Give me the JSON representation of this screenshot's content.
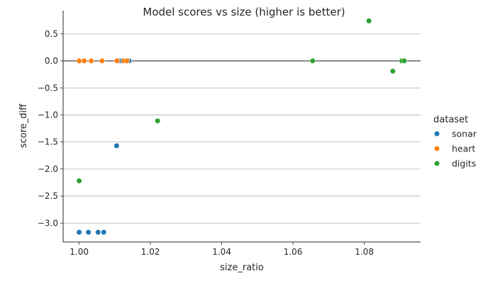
{
  "chart_data": {
    "type": "scatter",
    "title": "Model scores vs size (higher is better)",
    "xlabel": "size_ratio",
    "ylabel": "score_diff",
    "xlim": [
      0.9955,
      1.0958
    ],
    "ylim": [
      -3.35,
      0.93
    ],
    "xticks": [
      1.0,
      1.02,
      1.04,
      1.06,
      1.08
    ],
    "xtick_labels": [
      "1.00",
      "1.02",
      "1.04",
      "1.06",
      "1.08"
    ],
    "yticks": [
      -3.0,
      -2.5,
      -2.0,
      -1.5,
      -1.0,
      -0.5,
      0.0,
      0.5
    ],
    "ytick_labels": [
      "−3.0",
      "−2.5",
      "−2.0",
      "−1.5",
      "−1.0",
      "−0.5",
      "0.0",
      "0.5"
    ],
    "grid": "horizontal",
    "reference_line_y": 0,
    "legend": {
      "title": "dataset",
      "placement": "right",
      "entries": [
        "sonar",
        "heart",
        "digits"
      ]
    },
    "series": [
      {
        "name": "sonar",
        "color": "#1f77b4",
        "points": [
          {
            "x": 1.0,
            "y": -3.17
          },
          {
            "x": 1.0026,
            "y": -3.17
          },
          {
            "x": 1.0053,
            "y": -3.17
          },
          {
            "x": 1.0069,
            "y": -3.17
          },
          {
            "x": 1.0105,
            "y": -1.57
          },
          {
            "x": 1.0112,
            "y": 0.0
          },
          {
            "x": 1.012,
            "y": 0.0
          },
          {
            "x": 1.0127,
            "y": 0.0
          },
          {
            "x": 1.0135,
            "y": 0.0
          },
          {
            "x": 1.014,
            "y": 0.0
          }
        ]
      },
      {
        "name": "heart",
        "color": "#ff7f0e",
        "points": [
          {
            "x": 1.0,
            "y": 0.0
          },
          {
            "x": 1.0014,
            "y": 0.0
          },
          {
            "x": 1.0034,
            "y": 0.0
          },
          {
            "x": 1.0064,
            "y": 0.0
          },
          {
            "x": 1.0106,
            "y": 0.0
          },
          {
            "x": 1.0125,
            "y": 0.0
          },
          {
            "x": 1.0134,
            "y": 0.0
          }
        ]
      },
      {
        "name": "digits",
        "color": "#2ca02c",
        "points": [
          {
            "x": 1.0,
            "y": -2.22
          },
          {
            "x": 1.022,
            "y": -1.11
          },
          {
            "x": 1.0655,
            "y": 0.0
          },
          {
            "x": 1.0813,
            "y": 0.74
          },
          {
            "x": 1.088,
            "y": -0.19
          },
          {
            "x": 1.0905,
            "y": 0.0
          },
          {
            "x": 1.0912,
            "y": 0.0
          }
        ]
      }
    ]
  }
}
